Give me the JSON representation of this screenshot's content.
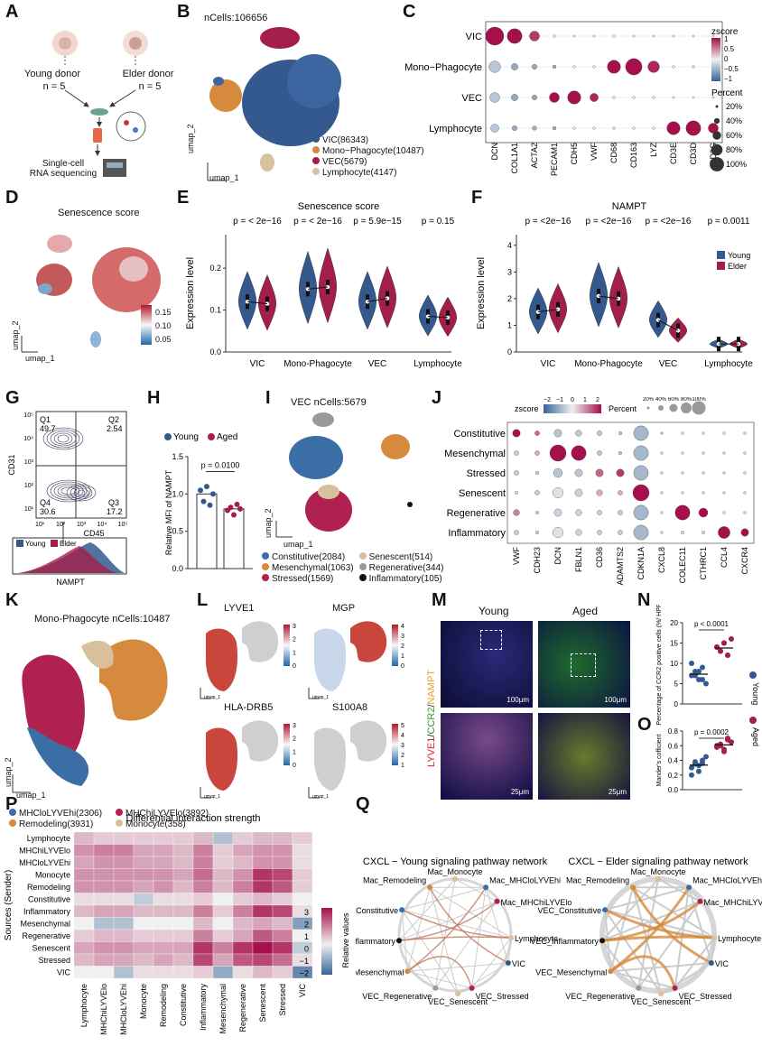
{
  "panel_labels": {
    "A": "A",
    "B": "B",
    "C": "C",
    "D": "D",
    "E": "E",
    "F": "F",
    "G": "G",
    "H": "H",
    "I": "I",
    "J": "J",
    "K": "K",
    "L": "L",
    "M": "M",
    "N": "N",
    "O": "O",
    "P": "P",
    "Q": "Q"
  },
  "panelA": {
    "young": "Young donor",
    "elder": "Elder donor",
    "n_young": "n = 5",
    "n_elder": "n = 5",
    "seq": "Single-cell\nRNA sequencing"
  },
  "panelB": {
    "title": "nCells:106656",
    "xlab": "umap_1",
    "ylab": "umap_2",
    "legend": [
      {
        "label": "VIC(86343)",
        "color": "#34598f"
      },
      {
        "label": "Mono−Phagocyte(10487)",
        "color": "#d58a3d"
      },
      {
        "label": "VEC(5679)",
        "color": "#a41e4a"
      },
      {
        "label": "Lymphocyte(4147)",
        "color": "#d7c3a0"
      }
    ]
  },
  "panelC": {
    "rows": [
      "VIC",
      "Mono−Phagocyte",
      "VEC",
      "Lymphocyte"
    ],
    "cols": [
      "DCN",
      "COL1A1",
      "ACTA2",
      "PECAM1",
      "CDH5",
      "VWF",
      "CD68",
      "CD163",
      "LYZ",
      "CD3E",
      "CD3D",
      "CD3G"
    ],
    "legend_z": "zscore",
    "z_ticks": [
      "1",
      "0.5",
      "0",
      "−0.5",
      "−1"
    ],
    "legend_pct": "Percent",
    "pct_ticks": [
      "20%",
      "40%",
      "60%",
      "80%",
      "100%"
    ]
  },
  "panelD": {
    "title": "Senescence score",
    "ticks": [
      "0.15",
      "0.10",
      "0.05"
    ],
    "xlab": "umap_1",
    "ylab": "umap_2"
  },
  "panelE": {
    "title": "Senescence score",
    "pvals": [
      "p = < 2e−16",
      "p = < 2e−16",
      "p = 5.9e−15",
      "p = 0.15"
    ],
    "ylabel": "Expression level",
    "yticks": [
      "0.0",
      "0.1",
      "0.2"
    ],
    "groups": [
      "VIC",
      "Mono-Phagocyte",
      "VEC",
      "Lymphocyte"
    ]
  },
  "panelF": {
    "title": "NAMPT",
    "pvals": [
      "p = <2e−16",
      "p = <2e−16",
      "p = <2e−16",
      "p = 0.0011"
    ],
    "ylabel": "Expression level",
    "yticks": [
      "0",
      "1",
      "2",
      "3",
      "4"
    ],
    "groups": [
      "VIC",
      "Mono-Phagocyte",
      "VEC",
      "Lymphocyte"
    ],
    "legend": [
      "Young",
      "Elder"
    ]
  },
  "panelG": {
    "q1": "Q1",
    "q1v": "49.7",
    "q2": "Q2",
    "q2v": "2.54",
    "q3": "Q3",
    "q3v": "17.2",
    "q4": "Q4",
    "q4v": "30.6",
    "ylab": "CD31",
    "xlab": "CD45",
    "hist_legend": [
      "Young",
      "Elder"
    ],
    "hist_xlab": "NAMPT",
    "yticks": [
      "10⁵",
      "10⁴",
      "10³",
      "10²",
      "10¹"
    ],
    "xticks": [
      "10¹",
      "10²",
      "10³",
      "10⁴",
      "10⁵"
    ]
  },
  "panelH": {
    "legend": [
      "Young",
      "Aged"
    ],
    "pval": "p = 0.0100",
    "ylabel": "Relative MFI of NAMPT",
    "yticks": [
      "0.0",
      "0.5",
      "1.0",
      "1.5"
    ]
  },
  "panelI": {
    "title": "VEC nCells:5679",
    "xlab": "umap_1",
    "ylab": "umap_2",
    "legend": [
      {
        "label": "Constitutive(2084)",
        "color": "#3b6ea5"
      },
      {
        "label": "Senescent(514)",
        "color": "#d8c09c"
      },
      {
        "label": "Mesenchymal(1063)",
        "color": "#d58a3d"
      },
      {
        "label": "Regenerative(344)",
        "color": "#9a9a9a"
      },
      {
        "label": "Stressed(1569)",
        "color": "#b02050"
      },
      {
        "label": "Inflammatory(105)",
        "color": "#111111"
      }
    ]
  },
  "panelJ": {
    "rows": [
      "Constitutive",
      "Mesenchymal",
      "Stressed",
      "Senescent",
      "Regenerative",
      "Inflammatory"
    ],
    "cols": [
      "VWF",
      "CDH23",
      "DCN",
      "FBLN1",
      "CD36",
      "ADAMTS2",
      "CDKN1A",
      "CXCL8",
      "COLEC11",
      "CTHRC1",
      "CCL4",
      "CXCR4"
    ],
    "legend_z": "zscore",
    "z_ticks": [
      "−2",
      "−1",
      "0",
      "1",
      "2"
    ],
    "legend_pct": "Percent",
    "pct_ticks": [
      "20%",
      "40%",
      "60%",
      "80%",
      "100%"
    ]
  },
  "panelK": {
    "title": "Mono-Phagocyte nCells:10487",
    "xlab": "umap_1",
    "ylab": "umap_2",
    "legend": [
      {
        "label": "MHCloLYVEhi(2306)",
        "color": "#3b6ea5"
      },
      {
        "label": "MHChiLYVElo(3892)",
        "color": "#b02050"
      },
      {
        "label": "Remodeling(3931)",
        "color": "#d58a3d"
      },
      {
        "label": "Monocyte(358)",
        "color": "#d8c09c"
      }
    ]
  },
  "panelL": {
    "genes": [
      "LYVE1",
      "MGP",
      "HLA-DRB5",
      "S100A8"
    ],
    "ticks": [
      [
        "3",
        "2",
        "1",
        "0"
      ],
      [
        "4",
        "3",
        "2",
        "1",
        "0"
      ],
      [
        "3",
        "2",
        "1",
        "0"
      ],
      [
        "5",
        "4",
        "3",
        "2",
        "1"
      ]
    ],
    "xlab": "umap_1",
    "ylab": "umap_2"
  },
  "panelM": {
    "cols": [
      "Young",
      "Aged"
    ],
    "scale_top": "100μm",
    "scale_bottom": "25μm",
    "stain": [
      "LYVE1",
      "/",
      "CCR2",
      "/",
      "NAMPT"
    ]
  },
  "panelN": {
    "pval": "p < 0.0001",
    "ylabel": "Percentage of CCR2 positive cells (%/ HPF)",
    "yticks": [
      "0",
      "5",
      "10",
      "15",
      "20"
    ]
  },
  "panelO": {
    "pval": "p = 0.0002",
    "ylabel": "Mander's cofficient",
    "yticks": [
      "0.0",
      "0.2",
      "0.4",
      "0.6",
      "0.8"
    ]
  },
  "panelNO_legend": [
    "Young",
    "Aged"
  ],
  "panelP": {
    "title": "Differential interaction strength",
    "ylabel": "Sources (Sender)",
    "legend_title": "Relative values",
    "legend_ticks": [
      "3",
      "2",
      "1",
      "0",
      "−1",
      "−2"
    ],
    "labels": [
      "Lymphocyte",
      "MHChiLYVElo",
      "MHCloLYVEhi",
      "Monocyte",
      "Remodeling",
      "Constitutive",
      "Inflammatory",
      "Mesenchymal",
      "Regenerative",
      "Senescent",
      "Stressed",
      "VIC"
    ]
  },
  "panelQ": {
    "titles": [
      "CXCL − Young signaling pathway network",
      "CXCL − Elder signaling pathway network"
    ],
    "nodes": [
      "Mac_Monocyte",
      "Mac_Remodeling",
      "Mac_MHCloLYVEhi",
      "Mac_MHChiLYVElo",
      "VEC_Constitutive",
      "Lymphocyte",
      "VEC_Inflammatory",
      "VIC",
      "VEC_Mesenchymal",
      "VEC_Regenerative",
      "VEC_Stressed",
      "VEC_Senescent"
    ]
  },
  "colors": {
    "young": "#34598f",
    "elder": "#a41e4a",
    "grey": "#cfcfcf"
  }
}
